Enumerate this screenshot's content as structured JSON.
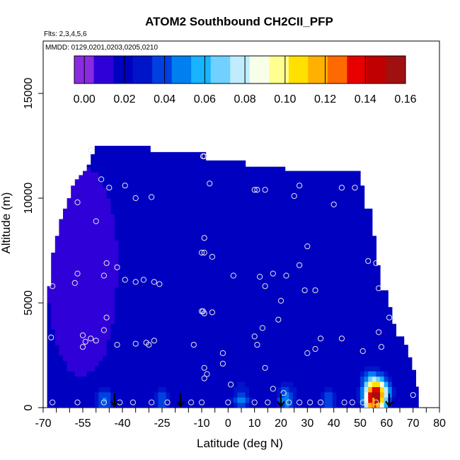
{
  "chart_data": {
    "type": "heatmap",
    "title": "ATOM2 Southbound CH2CII_PFP",
    "flights_note": "Flts: 2,3,4,5,6",
    "dates_note": "MMDD: 0129,0201,0203,0205,0210",
    "xlabel": "Latitude (deg N)",
    "ylabel": "Altitude (m)",
    "xlim": [
      -70,
      80
    ],
    "ylim": [
      0,
      17500
    ],
    "x_ticks": [
      -70,
      -55,
      -40,
      -25,
      -10,
      0,
      10,
      20,
      30,
      40,
      50,
      60,
      70,
      80
    ],
    "x_minor_ticks": [
      -65,
      -60,
      -50,
      -45,
      -35,
      -30,
      -20,
      -15,
      -5,
      5,
      15,
      25,
      35,
      45,
      55,
      65,
      75
    ],
    "y_ticks": [
      0,
      5000,
      10000,
      15000
    ],
    "colorbar": {
      "min": -0.005,
      "max": 0.16,
      "tick_values": [
        0.0,
        0.02,
        0.04,
        0.06,
        0.08,
        0.1,
        0.12,
        0.14,
        0.16
      ],
      "tick_labels": [
        "0.00",
        "0.02",
        "0.04",
        "0.06",
        "0.08",
        "0.10",
        "0.12",
        "0.14",
        "0.16"
      ],
      "colors": [
        "#8a2be2",
        "#3000d8",
        "#0000c0",
        "#0014c8",
        "#0040e0",
        "#0080f0",
        "#18b4ff",
        "#70d0ff",
        "#c0ecff",
        "#f8ffe8",
        "#ffff90",
        "#ffe000",
        "#ffb000",
        "#ff6a00",
        "#e80000",
        "#c00000",
        "#a01010"
      ]
    },
    "envelope": [
      [
        -68.5,
        5800
      ],
      [
        -67.5,
        6600
      ],
      [
        -66.5,
        7400
      ],
      [
        -65.5,
        8200
      ],
      [
        -64.5,
        9000
      ],
      [
        -63,
        9500
      ],
      [
        -61.5,
        10000
      ],
      [
        -60,
        10600
      ],
      [
        -58.5,
        10900
      ],
      [
        -56.5,
        11100
      ],
      [
        -55,
        11300
      ],
      [
        -53.5,
        11600
      ],
      [
        -52,
        12100
      ],
      [
        -50,
        12500
      ],
      [
        -30,
        12500
      ],
      [
        -30,
        12200
      ],
      [
        -10,
        12200
      ],
      [
        -9,
        11800
      ],
      [
        0,
        11800
      ],
      [
        7,
        11500
      ],
      [
        20,
        11500
      ],
      [
        22,
        11300
      ],
      [
        45,
        11300
      ],
      [
        50,
        10600
      ],
      [
        52,
        9500
      ],
      [
        54,
        8200
      ],
      [
        56,
        6800
      ],
      [
        58,
        5600
      ],
      [
        60,
        4800
      ],
      [
        62,
        4000
      ],
      [
        64,
        3400
      ],
      [
        66,
        3000
      ],
      [
        68,
        2400
      ],
      [
        70,
        1800
      ],
      [
        71,
        1000
      ],
      [
        72,
        500
      ]
    ],
    "clean_air_value": 0.015,
    "surface_enhancements": [
      {
        "lat": -47,
        "alt": 350,
        "value": 0.045
      },
      {
        "lat": -25,
        "alt": 300,
        "value": 0.04
      },
      {
        "lat": 5,
        "alt": 400,
        "value": 0.045
      },
      {
        "lat": 22,
        "alt": 400,
        "value": 0.05
      },
      {
        "lat": 38,
        "alt": 300,
        "value": 0.04
      },
      {
        "lat": 54,
        "alt": 1100,
        "value": 0.06
      },
      {
        "lat": 58,
        "alt": 750,
        "value": 0.08
      },
      {
        "lat": 55,
        "alt": 300,
        "value": 0.12
      }
    ],
    "samples": [
      [
        -66.5,
        250
      ],
      [
        -67,
        3350
      ],
      [
        -66.5,
        5800
      ],
      [
        -57,
        9800
      ],
      [
        -52,
        12300
      ],
      [
        -48,
        10900
      ],
      [
        -45,
        10500
      ],
      [
        -39,
        10600
      ],
      [
        -35,
        10000
      ],
      [
        -29,
        10050
      ],
      [
        -50,
        8900
      ],
      [
        -46,
        6900
      ],
      [
        -42,
        6700
      ],
      [
        -47,
        6300
      ],
      [
        -39,
        6100
      ],
      [
        -35,
        6000
      ],
      [
        -32,
        6100
      ],
      [
        -28,
        6000
      ],
      [
        -26,
        5900
      ],
      [
        -58,
        5950
      ],
      [
        -57,
        6400
      ],
      [
        -46,
        4300
      ],
      [
        -47,
        3700
      ],
      [
        -52,
        3300
      ],
      [
        -55,
        3450
      ],
      [
        -54,
        3150
      ],
      [
        -55,
        2900
      ],
      [
        -50,
        3200
      ],
      [
        -42,
        3000
      ],
      [
        -35,
        3050
      ],
      [
        -31,
        3100
      ],
      [
        -30,
        3000
      ],
      [
        -28,
        3200
      ],
      [
        -57,
        250
      ],
      [
        -47,
        250
      ],
      [
        -41,
        250
      ],
      [
        -36,
        250
      ],
      [
        -29,
        250
      ],
      [
        -23,
        250
      ],
      [
        -14,
        250
      ],
      [
        -10,
        250
      ],
      [
        -9,
        12000
      ],
      [
        -9.5,
        12000
      ],
      [
        -7,
        10700
      ],
      [
        -9,
        8100
      ],
      [
        -10,
        7400
      ],
      [
        -9,
        7400
      ],
      [
        -6,
        7200
      ],
      [
        -10,
        4600
      ],
      [
        -9,
        4500
      ],
      [
        -9.5,
        4600
      ],
      [
        -6,
        4550
      ],
      [
        -13,
        3000
      ],
      [
        -9,
        1900
      ],
      [
        -8,
        1600
      ],
      [
        -9,
        1400
      ],
      [
        -2,
        2600
      ],
      [
        -2,
        2100
      ],
      [
        2,
        6300
      ],
      [
        12,
        6250
      ],
      [
        14,
        5800
      ],
      [
        17,
        6400
      ],
      [
        22,
        6300
      ],
      [
        20,
        5100
      ],
      [
        19,
        4200
      ],
      [
        13,
        3800
      ],
      [
        10,
        3400
      ],
      [
        11,
        3000
      ],
      [
        14,
        1900
      ],
      [
        17,
        900
      ],
      [
        21,
        700
      ],
      [
        1,
        1100
      ],
      [
        10,
        10400
      ],
      [
        11,
        10400
      ],
      [
        14,
        10400
      ],
      [
        25,
        10100
      ],
      [
        27,
        10600
      ],
      [
        40,
        9700
      ],
      [
        43,
        10500
      ],
      [
        48,
        10500
      ],
      [
        30,
        7700
      ],
      [
        27,
        6800
      ],
      [
        29,
        5600
      ],
      [
        33,
        5600
      ],
      [
        35,
        3300
      ],
      [
        33,
        2800
      ],
      [
        30,
        2600
      ],
      [
        43,
        3300
      ],
      [
        51,
        2700
      ],
      [
        53,
        7000
      ],
      [
        56,
        6900
      ],
      [
        57,
        5700
      ],
      [
        58,
        2900
      ],
      [
        57,
        3600
      ],
      [
        61,
        4300
      ],
      [
        0,
        250
      ],
      [
        10,
        250
      ],
      [
        15,
        250
      ],
      [
        23,
        250
      ],
      [
        27,
        250
      ],
      [
        31,
        250
      ],
      [
        35,
        250
      ],
      [
        44,
        250
      ],
      [
        47,
        250
      ],
      [
        51,
        250
      ],
      [
        56,
        250
      ],
      [
        70,
        600
      ]
    ],
    "flight_markers_lat": [
      -43,
      -18,
      20,
      61
    ],
    "highlight_marker_lat": 55
  }
}
